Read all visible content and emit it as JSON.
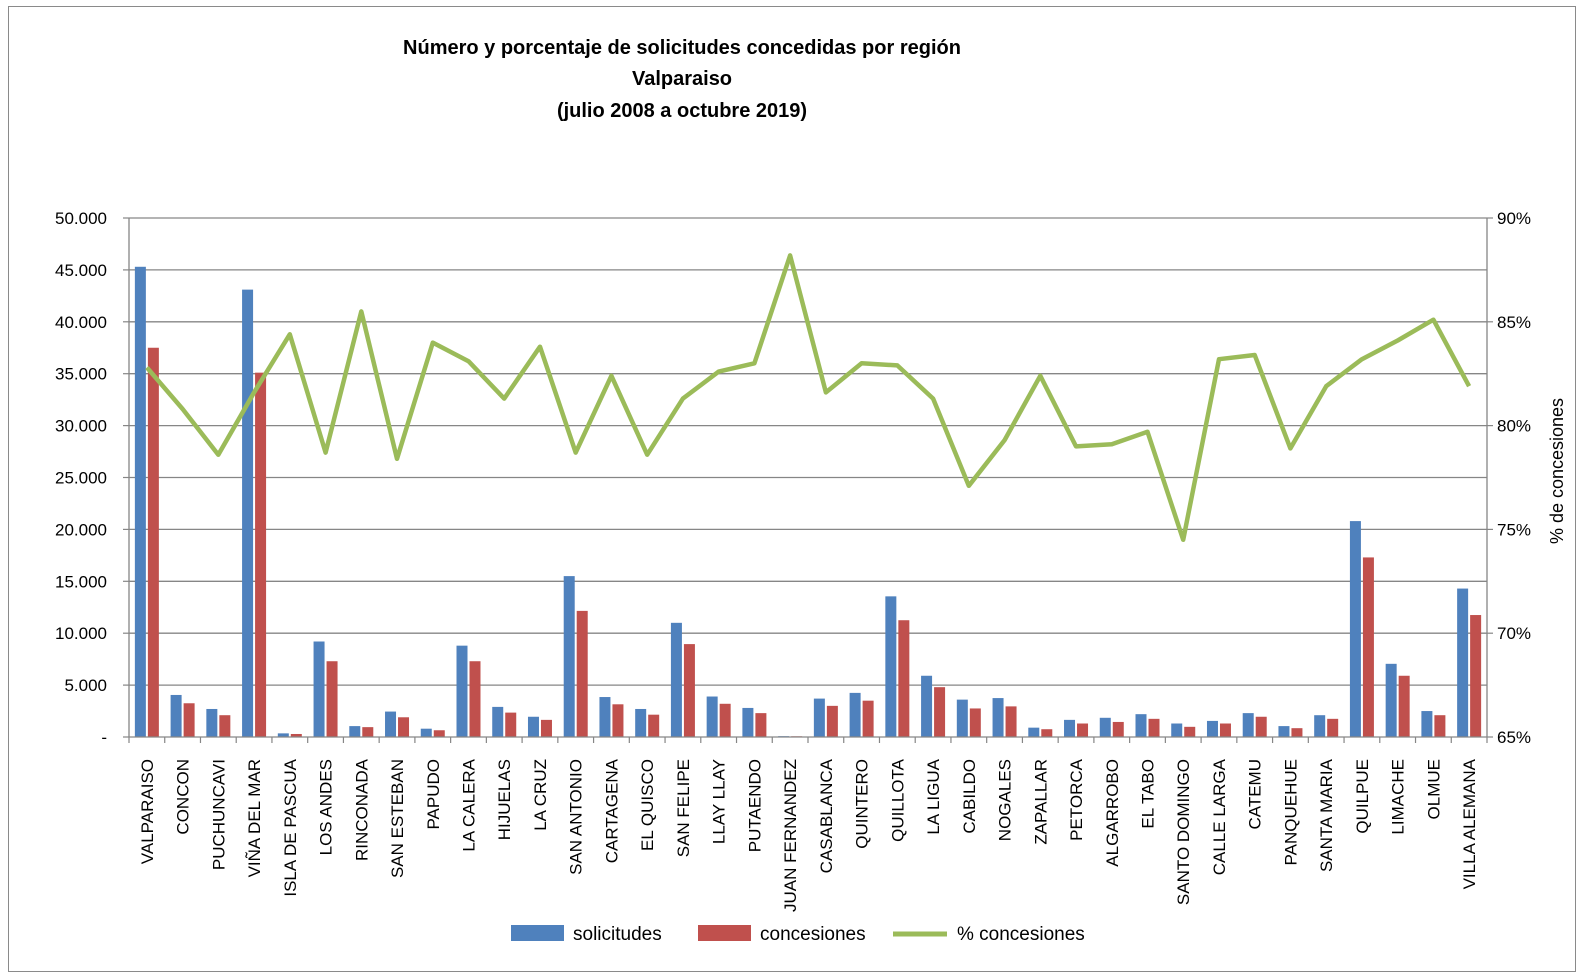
{
  "chart_data": {
    "type": "bar",
    "title_lines": [
      "Número y porcentaje de solicitudes concedidas por región",
      "Valparaiso",
      "(julio 2008 a octubre 2019)"
    ],
    "categories": [
      "VALPARAISO",
      "CONCON",
      "PUCHUNCAVI",
      "VIÑA DEL MAR",
      "ISLA DE PASCUA",
      "LOS ANDES",
      "RINCONADA",
      "SAN ESTEBAN",
      "PAPUDO",
      "LA CALERA",
      "HIJUELAS",
      "LA CRUZ",
      "SAN ANTONIO",
      "CARTAGENA",
      "EL QUISCO",
      "SAN FELIPE",
      "LLAY LLAY",
      "PUTAENDO",
      "JUAN FERNANDEZ",
      "CASABLANCA",
      "QUINTERO",
      "QUILLOTA",
      "LA LIGUA",
      "CABILDO",
      "NOGALES",
      "ZAPALLAR",
      "PETORCA",
      "ALGARROBO",
      "EL TABO",
      "SANTO DOMINGO",
      "CALLE LARGA",
      "CATEMU",
      "PANQUEHUE",
      "SANTA MARIA",
      "QUILPUE",
      "LIMACHE",
      "OLMUE",
      "VILLA ALEMANA"
    ],
    "series": [
      {
        "name": "solicitudes",
        "kind": "bar",
        "axis": "left",
        "color": "#4f81bd",
        "values": [
          45300,
          4050,
          2700,
          43100,
          350,
          9200,
          1050,
          2450,
          800,
          8800,
          2900,
          1950,
          15500,
          3850,
          2700,
          11000,
          3900,
          2800,
          80,
          3700,
          4250,
          13550,
          5900,
          3600,
          3750,
          900,
          1650,
          1850,
          2200,
          1300,
          1550,
          2300,
          1050,
          2100,
          20800,
          7050,
          2500,
          14300
        ]
      },
      {
        "name": "concesiones",
        "kind": "bar",
        "axis": "left",
        "color": "#c0504d",
        "values": [
          37500,
          3250,
          2100,
          35100,
          290,
          7300,
          950,
          1900,
          650,
          7300,
          2350,
          1650,
          12150,
          3150,
          2150,
          8950,
          3200,
          2300,
          70,
          3000,
          3500,
          11250,
          4800,
          2750,
          2950,
          750,
          1300,
          1450,
          1750,
          980,
          1300,
          1950,
          850,
          1750,
          17300,
          5900,
          2100,
          11750
        ]
      },
      {
        "name": "% concesiones",
        "kind": "line",
        "axis": "right",
        "color": "#9bbb59",
        "values": [
          82.8,
          80.8,
          78.6,
          81.6,
          84.4,
          78.7,
          85.5,
          78.4,
          84.0,
          83.1,
          81.3,
          83.8,
          78.7,
          82.4,
          78.6,
          81.3,
          82.6,
          83.0,
          88.2,
          81.6,
          83.0,
          82.9,
          81.3,
          77.1,
          79.3,
          82.4,
          79.0,
          79.1,
          79.7,
          74.5,
          83.2,
          83.4,
          78.9,
          81.9,
          83.2,
          84.1,
          85.1,
          81.9
        ]
      }
    ],
    "y_left": {
      "min": 0,
      "max": 50000,
      "ticks": [
        "-",
        "5.000",
        "10.000",
        "15.000",
        "20.000",
        "25.000",
        "30.000",
        "35.000",
        "40.000",
        "45.000",
        "50.000"
      ]
    },
    "y_right": {
      "min": 65,
      "max": 90,
      "ticks": [
        "65%",
        "70%",
        "75%",
        "80%",
        "85%",
        "90%"
      ],
      "label": "% de concesiones"
    },
    "grid": true,
    "legend_position": "bottom"
  }
}
